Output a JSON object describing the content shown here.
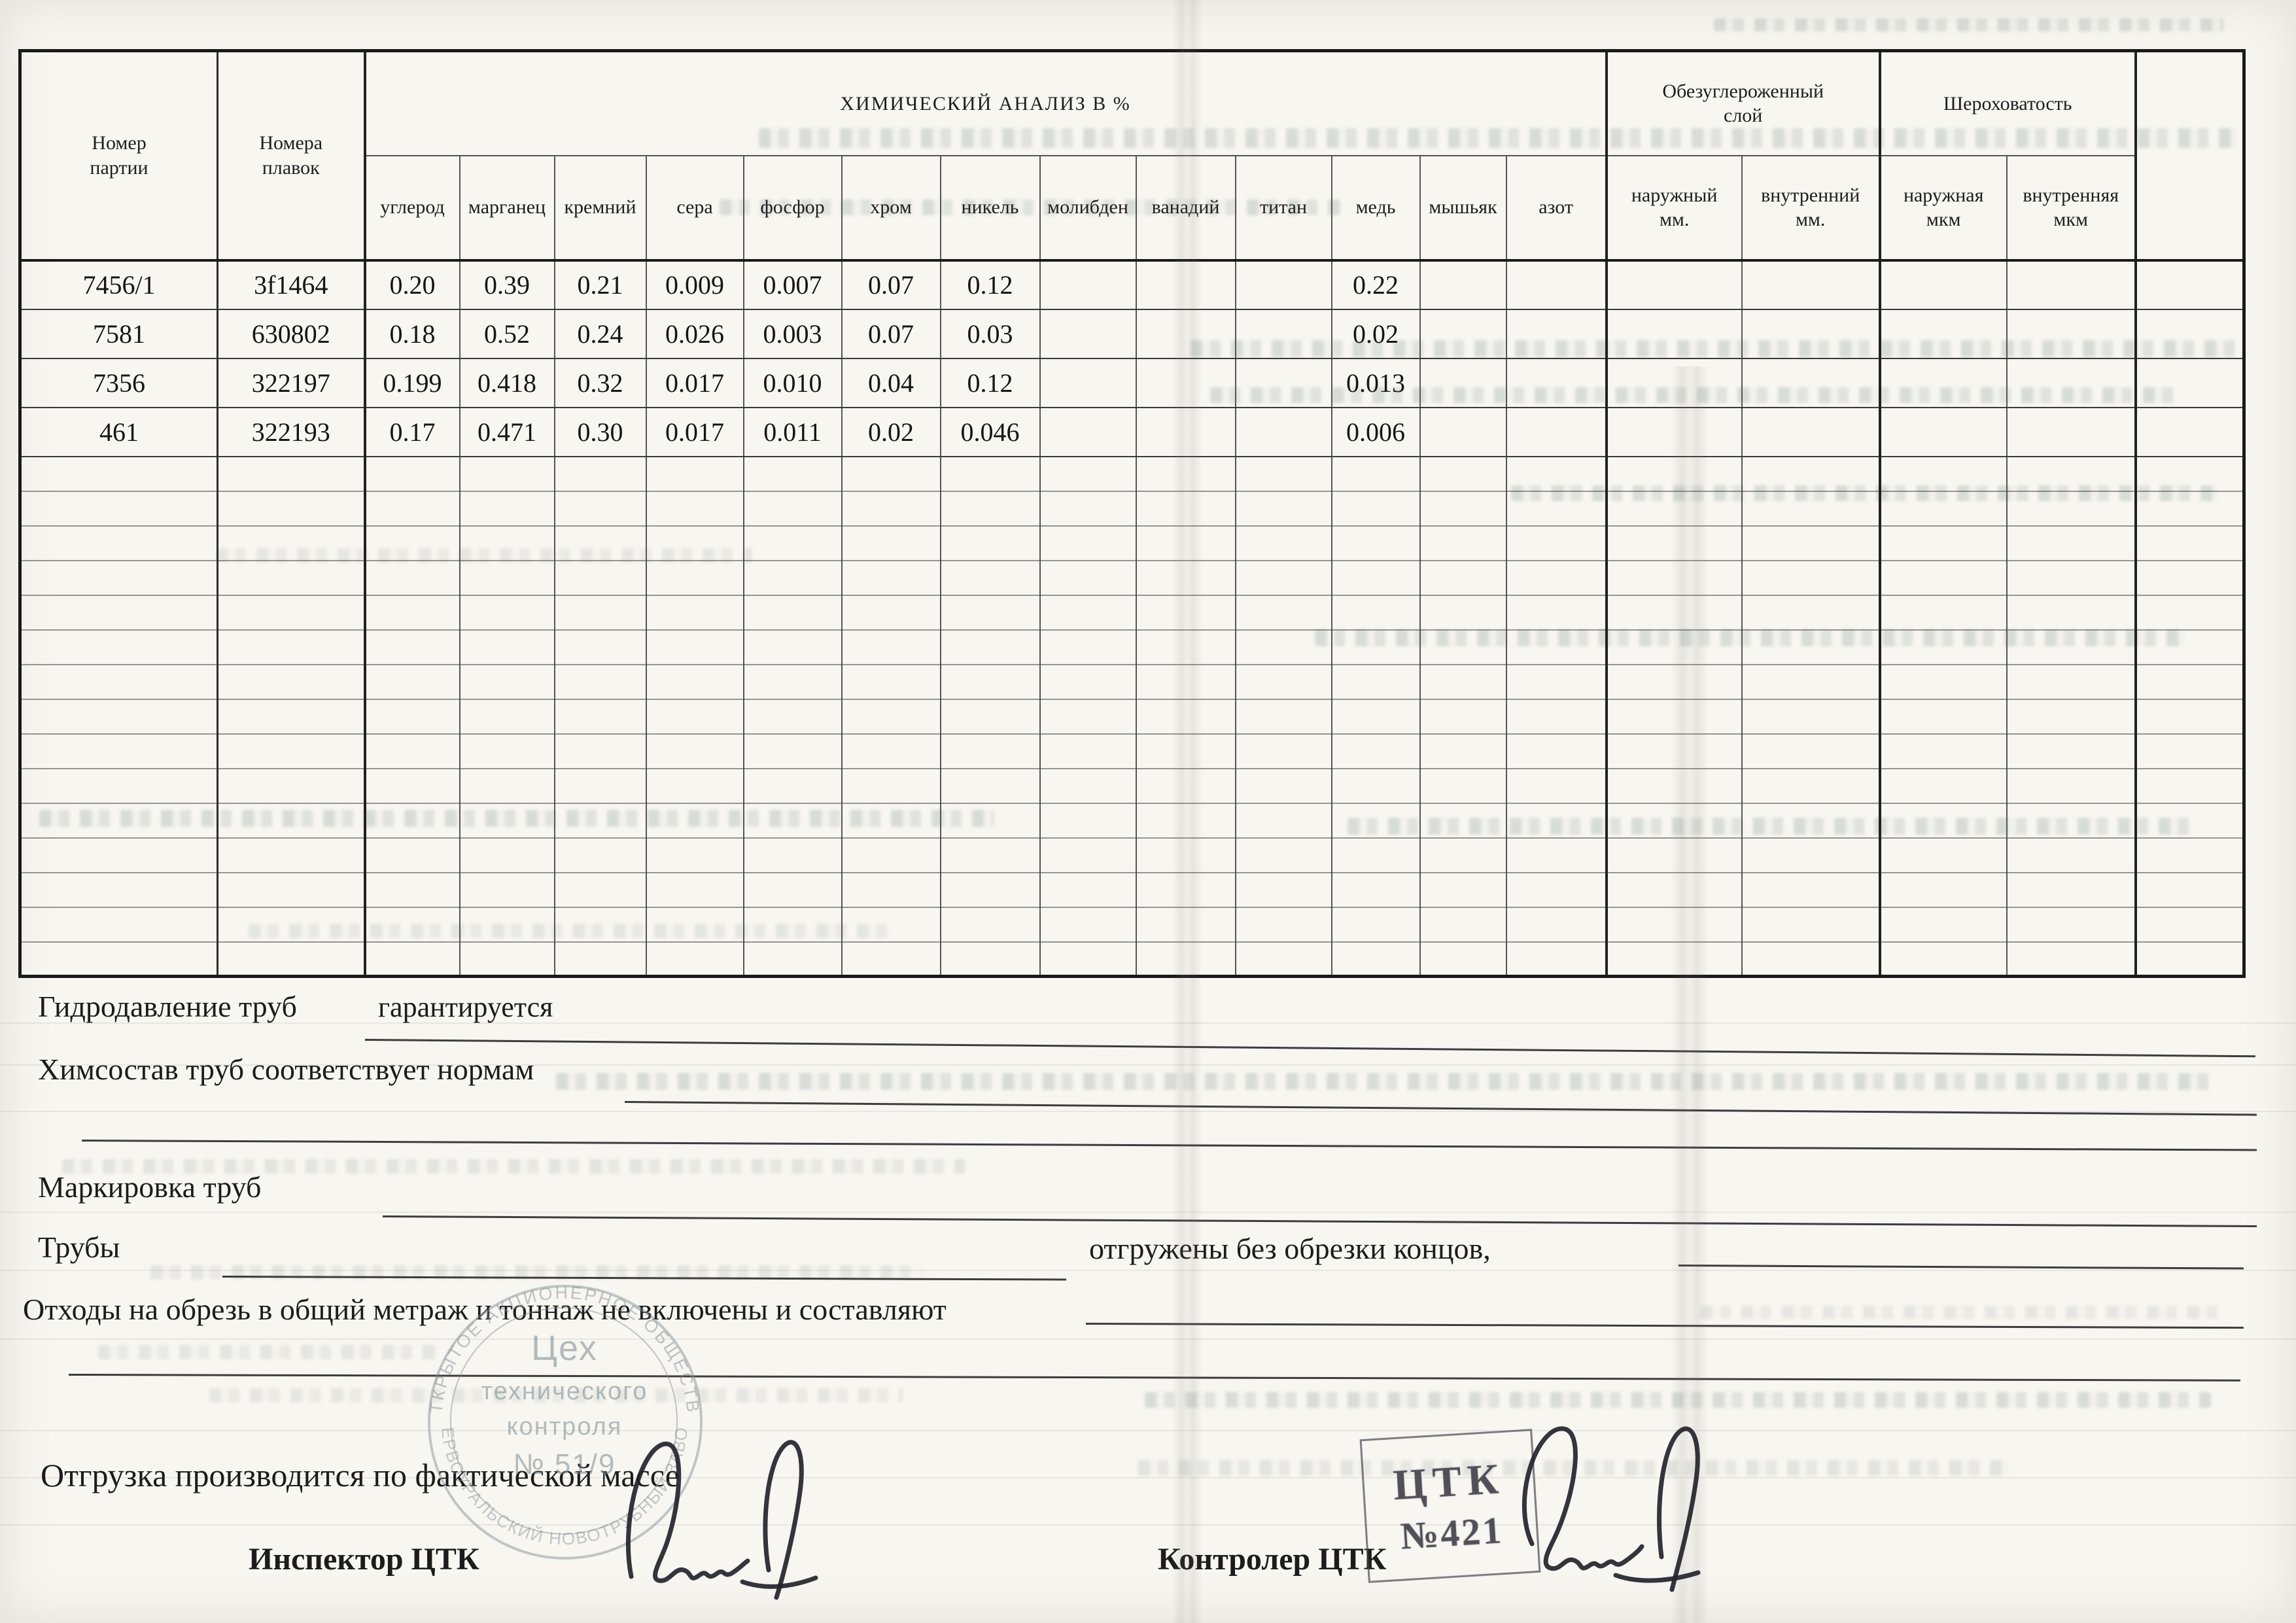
{
  "table": {
    "header": {
      "batch": "Номер\nпартии",
      "heats": "Номера\nплавок",
      "chem_group": "ХИМИЧЕСКИЙ АНАЛИЗ В %",
      "decarb_group": "Обезуглероженный\nслой",
      "rough_group": "Шероховатость",
      "chem_cols": [
        "углерод",
        "марганец",
        "кремний",
        "сера",
        "фосфор",
        "хром",
        "никель",
        "молибден",
        "ванадий",
        "титан",
        "медь",
        "мышьяк",
        "азот"
      ],
      "decarb_cols": [
        "наружный\nмм.",
        "внутренний\nмм."
      ],
      "rough_cols": [
        "наружная\nмкм",
        "внутренняя\nмкм"
      ]
    },
    "rows": [
      {
        "batch": "7456/1",
        "heat": "3f1464",
        "chem": [
          "0.20",
          "0.39",
          "0.21",
          "0.009",
          "0.007",
          "0.07",
          "0.12",
          "",
          "",
          "",
          "0.22",
          "",
          ""
        ],
        "decarb": [
          "",
          ""
        ],
        "rough": [
          "",
          ""
        ]
      },
      {
        "batch": "7581",
        "heat": "630802",
        "chem": [
          "0.18",
          "0.52",
          "0.24",
          "0.026",
          "0.003",
          "0.07",
          "0.03",
          "",
          "",
          "",
          "0.02",
          "",
          ""
        ],
        "decarb": [
          "",
          ""
        ],
        "rough": [
          "",
          ""
        ]
      },
      {
        "batch": "7356",
        "heat": "322197",
        "chem": [
          "0.199",
          "0.418",
          "0.32",
          "0.017",
          "0.010",
          "0.04",
          "0.12",
          "",
          "",
          "",
          "0.013",
          "",
          ""
        ],
        "decarb": [
          "",
          ""
        ],
        "rough": [
          "",
          ""
        ]
      },
      {
        "batch": "461",
        "heat": "322193",
        "chem": [
          "0.17",
          "0.471",
          "0.30",
          "0.017",
          "0.011",
          "0.02",
          "0.046",
          "",
          "",
          "",
          "0.006",
          "",
          ""
        ],
        "decarb": [
          "",
          ""
        ],
        "rough": [
          "",
          ""
        ]
      }
    ],
    "empty_row_count": 15
  },
  "notes": {
    "hydro_label": "Гидродавление труб",
    "hydro_value": "гарантируется",
    "chem_note": "Химсостав труб соответствует нормам",
    "marking_label": "Маркировка труб",
    "pipes_label": "Трубы",
    "pipes_note": "отгружены без обрезки концов,",
    "waste_note": "Отходы на обрезь в общий метраж и тоннаж не включены и составляют",
    "shipping_note": "Отгрузка производится по фактической массе",
    "inspector_label": "Инспектор  ЦТК",
    "controller_label": "Контролер ЦТК"
  },
  "stamps": {
    "ctk": {
      "line1": "ЦТК",
      "line2": "№421"
    },
    "round": {
      "ring_top": "ОТКРЫТОЕ АКЦИОНЕРНОЕ ОБЩЕСТВО",
      "ring_bottom": "ПЕРВОУРАЛЬСКИЙ НОВОТРУБНЫЙ ЗАВОД",
      "line1": "Цех",
      "line2": "технического",
      "line3": "контроля",
      "line4": "№ 51/9"
    }
  },
  "colors": {
    "ink": "#1d1d1d",
    "stamp_teal": "#7d929c",
    "paper": "#f8f6f1"
  }
}
